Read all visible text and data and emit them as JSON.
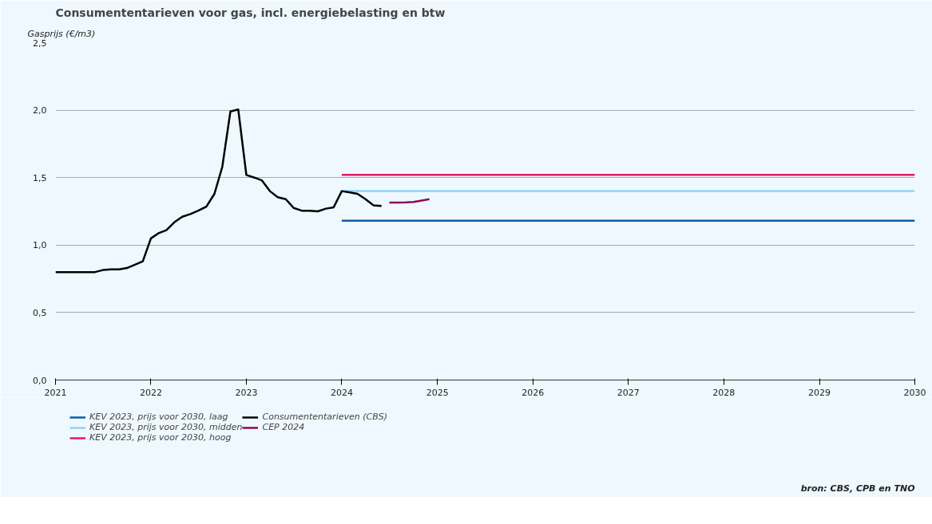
{
  "chart_data": {
    "type": "line",
    "title": "Consumententarieven voor gas, incl. energiebelasting en btw",
    "ylabel": "Gasprijs (€/m3)",
    "annotations": [
      "bron: CBS, CPB en TNO"
    ],
    "xlim": [
      "2021",
      "2030"
    ],
    "xticks": [
      "2021",
      "2022",
      "2023",
      "2024",
      "2025",
      "2026",
      "2027",
      "2028",
      "2029",
      "2030"
    ],
    "ylim": [
      0,
      2.5
    ],
    "yticks": [
      {
        "value": 0,
        "label": "0,0"
      },
      {
        "value": 0.5,
        "label": "0,5"
      },
      {
        "value": 1,
        "label": "1,0"
      },
      {
        "value": 1.5,
        "label": "1,5"
      },
      {
        "value": 2,
        "label": "2,0"
      },
      {
        "value": 2.5,
        "label": "2,5"
      }
    ],
    "grid": "y",
    "legend": "bottom left",
    "marker": "none",
    "line_style": "solid",
    "series": [
      {
        "name": "KEV 2023, prijs voor 2030, laag",
        "color": "#0b5ea8",
        "x": [
          "2024",
          "2030"
        ],
        "values": [
          1.18,
          1.18
        ]
      },
      {
        "name": "KEV 2023, prijs voor 2030, midden",
        "color": "#8fd3f7",
        "x": [
          "2024",
          "2030"
        ],
        "values": [
          1.4,
          1.4
        ]
      },
      {
        "name": "KEV 2023, prijs voor 2030, hoog",
        "color": "#e0176e",
        "x": [
          "2024",
          "2030"
        ],
        "values": [
          1.52,
          1.52
        ]
      },
      {
        "name": "Consumententarieven (CBS)",
        "color": "#000000",
        "x": [
          "2021-01",
          "2021-02",
          "2021-03",
          "2021-04",
          "2021-05",
          "2021-06",
          "2021-07",
          "2021-08",
          "2021-09",
          "2021-10",
          "2021-11",
          "2021-12",
          "2022-01",
          "2022-02",
          "2022-03",
          "2022-04",
          "2022-05",
          "2022-06",
          "2022-07",
          "2022-08",
          "2022-09",
          "2022-10",
          "2022-11",
          "2022-12",
          "2023-01",
          "2023-02",
          "2023-03",
          "2023-04",
          "2023-05",
          "2023-06",
          "2023-07",
          "2023-08",
          "2023-09",
          "2023-10",
          "2023-11",
          "2023-12",
          "2024-01",
          "2024-02",
          "2024-03",
          "2024-04",
          "2024-05",
          "2024-06"
        ],
        "values": [
          0.8,
          0.8,
          0.8,
          0.8,
          0.8,
          0.8,
          0.815,
          0.82,
          0.82,
          0.83,
          0.855,
          0.88,
          1.05,
          1.09,
          1.11,
          1.17,
          1.21,
          1.23,
          1.255,
          1.285,
          1.38,
          1.58,
          1.99,
          2.005,
          1.52,
          1.5,
          1.48,
          1.4,
          1.355,
          1.34,
          1.275,
          1.255,
          1.255,
          1.25,
          1.27,
          1.28,
          1.4,
          1.39,
          1.38,
          1.34,
          1.295,
          1.29
        ]
      },
      {
        "name": "CEP 2024",
        "color": "#8b0a5a",
        "x": [
          "2024-07",
          "2024-08",
          "2024-09",
          "2024-10",
          "2024-11",
          "2024-12"
        ],
        "values": [
          1.315,
          1.315,
          1.316,
          1.32,
          1.33,
          1.34
        ]
      }
    ]
  }
}
